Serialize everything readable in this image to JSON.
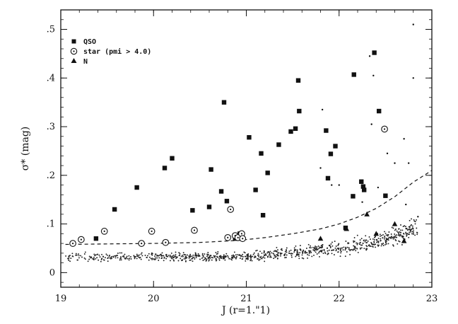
{
  "chart_data": {
    "type": "scatter",
    "title": "",
    "xlabel": "J (r=1.\"1)",
    "ylabel": "σ* (mag)",
    "xlim": [
      19,
      23
    ],
    "ylim": [
      -0.03,
      0.54
    ],
    "x_ticks": [
      {
        "value": 19,
        "label": "19"
      },
      {
        "value": 20,
        "label": "20"
      },
      {
        "value": 21,
        "label": "21"
      },
      {
        "value": 22,
        "label": "22"
      },
      {
        "value": 23,
        "label": "23"
      }
    ],
    "y_ticks": [
      {
        "value": 0,
        "label": "0"
      },
      {
        "value": 0.1,
        "label": ".1"
      },
      {
        "value": 0.2,
        "label": ".2"
      },
      {
        "value": 0.3,
        "label": ".3"
      },
      {
        "value": 0.4,
        "label": ".4"
      },
      {
        "value": 0.5,
        "label": ".5"
      }
    ],
    "grid": false,
    "legend_position": "top-left",
    "legend": [
      {
        "marker": "square",
        "label": "QSO"
      },
      {
        "marker": "circled-dot",
        "label": "star (pmi > 4.0)"
      },
      {
        "marker": "triangle",
        "label": "N"
      }
    ],
    "series": [
      {
        "name": "QSO",
        "marker": "square",
        "points": [
          [
            19.38,
            0.07
          ],
          [
            19.58,
            0.13
          ],
          [
            19.82,
            0.175
          ],
          [
            19.87,
            0.06
          ],
          [
            20.12,
            0.215
          ],
          [
            20.2,
            0.235
          ],
          [
            20.42,
            0.128
          ],
          [
            20.6,
            0.135
          ],
          [
            20.62,
            0.212
          ],
          [
            20.73,
            0.167
          ],
          [
            20.76,
            0.35
          ],
          [
            20.79,
            0.147
          ],
          [
            20.88,
            0.07
          ],
          [
            20.93,
            0.08
          ],
          [
            21.03,
            0.278
          ],
          [
            21.1,
            0.17
          ],
          [
            21.16,
            0.245
          ],
          [
            21.18,
            0.118
          ],
          [
            21.23,
            0.205
          ],
          [
            21.35,
            0.263
          ],
          [
            21.48,
            0.29
          ],
          [
            21.53,
            0.296
          ],
          [
            21.56,
            0.395
          ],
          [
            21.57,
            0.332
          ],
          [
            21.86,
            0.292
          ],
          [
            21.88,
            0.194
          ],
          [
            21.91,
            0.244
          ],
          [
            21.96,
            0.26
          ],
          [
            22.07,
            0.092
          ],
          [
            22.15,
            0.157
          ],
          [
            22.16,
            0.407
          ],
          [
            22.24,
            0.187
          ],
          [
            22.26,
            0.177
          ],
          [
            22.27,
            0.17
          ],
          [
            22.38,
            0.452
          ],
          [
            22.43,
            0.332
          ],
          [
            22.5,
            0.158
          ]
        ]
      },
      {
        "name": "star (pmi > 4.0)",
        "marker": "circled-dot",
        "points": [
          [
            19.13,
            0.06
          ],
          [
            19.22,
            0.068
          ],
          [
            19.47,
            0.085
          ],
          [
            19.98,
            0.085
          ],
          [
            19.87,
            0.06
          ],
          [
            20.13,
            0.062
          ],
          [
            20.44,
            0.087
          ],
          [
            20.8,
            0.072
          ],
          [
            20.83,
            0.13
          ],
          [
            20.88,
            0.076
          ],
          [
            20.91,
            0.072
          ],
          [
            20.95,
            0.08
          ],
          [
            20.96,
            0.07
          ],
          [
            22.49,
            0.295
          ]
        ]
      },
      {
        "name": "N",
        "marker": "triangle",
        "points": [
          [
            21.8,
            0.07
          ],
          [
            22.08,
            0.09
          ],
          [
            22.3,
            0.12
          ],
          [
            22.4,
            0.08
          ],
          [
            22.6,
            0.1
          ],
          [
            22.7,
            0.065
          ]
        ]
      }
    ],
    "outlier_dots": [
      [
        21.82,
        0.335
      ],
      [
        21.8,
        0.215
      ],
      [
        22.0,
        0.18
      ],
      [
        22.33,
        0.445
      ],
      [
        22.37,
        0.405
      ],
      [
        22.35,
        0.305
      ],
      [
        22.42,
        0.175
      ],
      [
        22.52,
        0.245
      ],
      [
        22.6,
        0.225
      ],
      [
        22.7,
        0.275
      ],
      [
        22.75,
        0.225
      ],
      [
        22.8,
        0.51
      ],
      [
        22.8,
        0.4
      ],
      [
        22.72,
        0.14
      ],
      [
        22.85,
        0.115
      ],
      [
        22.25,
        0.145
      ],
      [
        21.92,
        0.18
      ]
    ],
    "threshold_curve": [
      [
        19.05,
        0.058
      ],
      [
        19.5,
        0.059
      ],
      [
        20.0,
        0.06
      ],
      [
        20.5,
        0.062
      ],
      [
        20.9,
        0.066
      ],
      [
        21.2,
        0.072
      ],
      [
        21.5,
        0.08
      ],
      [
        21.8,
        0.09
      ],
      [
        22.0,
        0.1
      ],
      [
        22.2,
        0.114
      ],
      [
        22.4,
        0.132
      ],
      [
        22.6,
        0.156
      ],
      [
        22.8,
        0.186
      ],
      [
        23.0,
        0.21
      ]
    ]
  }
}
